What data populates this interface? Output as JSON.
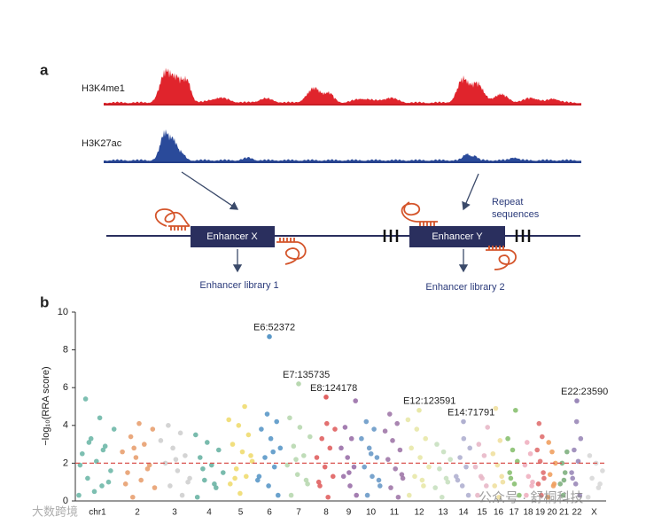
{
  "panel_a": {
    "label": "a",
    "tracks": [
      "H3K4me1",
      "H3K27ac"
    ],
    "enhancers": [
      "Enhancer X",
      "Enhancer Y"
    ],
    "libraries": [
      "Enhancer library 1",
      "Enhancer library 2"
    ],
    "repeat_label": [
      "Repeat",
      "sequences"
    ]
  },
  "chart_data": {
    "type": "scatter",
    "panel_label": "b",
    "ylabel": "−log₁₀(RRA score)",
    "ylim": [
      0,
      10
    ],
    "yticks": [
      0,
      2,
      4,
      6,
      8,
      10
    ],
    "threshold": 2,
    "threshold_color": "#d9534f",
    "categories": [
      "chr1",
      "2",
      "3",
      "4",
      "5",
      "6",
      "7",
      "8",
      "9",
      "10",
      "11",
      "12",
      "13",
      "14",
      "15",
      "16",
      "17",
      "18",
      "19",
      "20",
      "21",
      "22",
      "X"
    ],
    "series": [
      {
        "name": "chr1",
        "color": "#6fb8a8",
        "values": [
          0.3,
          0.8,
          1.2,
          1.6,
          2.1,
          2.5,
          2.9,
          3.3,
          3.8,
          4.4,
          5.4,
          1.0,
          0.5,
          1.9,
          2.7,
          3.1
        ]
      },
      {
        "name": "2",
        "color": "#e8a070",
        "values": [
          0.2,
          0.7,
          1.1,
          1.5,
          1.9,
          2.3,
          2.6,
          3.0,
          3.4,
          3.8,
          4.1,
          0.9,
          1.7,
          2.8
        ]
      },
      {
        "name": "3",
        "color": "#cfcfcf",
        "values": [
          0.3,
          0.8,
          1.2,
          1.6,
          2.0,
          2.4,
          2.8,
          3.2,
          3.6,
          4.0,
          1.0,
          2.2
        ]
      },
      {
        "name": "4",
        "color": "#6ab4a4",
        "values": [
          0.2,
          0.7,
          1.1,
          1.5,
          1.9,
          2.3,
          2.7,
          3.1,
          3.5,
          0.9,
          1.7
        ]
      },
      {
        "name": "5",
        "color": "#f0dc70",
        "values": [
          0.4,
          0.9,
          1.3,
          1.7,
          2.1,
          2.6,
          3.0,
          3.5,
          4.0,
          4.3,
          5.0,
          1.2,
          2.4
        ]
      },
      {
        "name": "6",
        "color": "#5a98c8",
        "values": [
          0.3,
          0.8,
          1.3,
          1.8,
          2.3,
          2.8,
          3.3,
          3.8,
          4.2,
          4.6,
          1.1,
          2.6
        ]
      },
      {
        "name": "7",
        "color": "#b8d8b0",
        "values": [
          0.3,
          0.9,
          1.4,
          1.9,
          2.4,
          2.9,
          3.4,
          3.9,
          4.4,
          1.1,
          2.2
        ]
      },
      {
        "name": "8",
        "color": "#e06060",
        "values": [
          0.2,
          0.8,
          1.3,
          1.8,
          2.3,
          2.8,
          3.3,
          3.8,
          4.1,
          1.0
        ]
      },
      {
        "name": "9",
        "color": "#9a70a8",
        "values": [
          0.3,
          0.8,
          1.3,
          1.8,
          2.3,
          2.8,
          3.3,
          3.9,
          5.3,
          1.5
        ]
      },
      {
        "name": "10",
        "color": "#6a9ac8",
        "values": [
          0.3,
          0.8,
          1.3,
          1.8,
          2.3,
          2.8,
          3.3,
          3.8,
          4.2,
          1.1,
          2.5
        ]
      },
      {
        "name": "11",
        "color": "#a078a8",
        "values": [
          0.2,
          0.7,
          1.2,
          1.7,
          2.2,
          2.7,
          3.2,
          3.7,
          4.1,
          4.6,
          1.4
        ]
      },
      {
        "name": "12",
        "color": "#e8e8a8",
        "values": [
          0.3,
          0.8,
          1.3,
          1.8,
          2.3,
          2.8,
          3.3,
          3.8,
          4.3,
          1.1
        ]
      },
      {
        "name": "13",
        "color": "#c8e0c0",
        "values": [
          0.2,
          0.7,
          1.2,
          1.7,
          2.2,
          2.6,
          3.0,
          1.0
        ]
      },
      {
        "name": "14",
        "color": "#b0b0d0",
        "values": [
          0.3,
          0.8,
          1.3,
          1.8,
          2.3,
          2.8,
          3.3,
          1.1
        ]
      },
      {
        "name": "15",
        "color": "#e8b8c8",
        "values": [
          0.3,
          0.8,
          1.3,
          1.8,
          2.4,
          3.0,
          3.9,
          1.2
        ]
      },
      {
        "name": "16",
        "color": "#f0e0a0",
        "values": [
          0.2,
          0.8,
          1.3,
          1.9,
          2.5,
          3.2,
          4.9,
          1.0
        ]
      },
      {
        "name": "17",
        "color": "#88c070",
        "values": [
          0.3,
          0.9,
          1.5,
          2.1,
          2.7,
          3.3,
          4.8,
          1.2
        ]
      },
      {
        "name": "18",
        "color": "#f0b0c0",
        "values": [
          0.3,
          0.8,
          1.3,
          1.9,
          2.5,
          3.1,
          1.0
        ]
      },
      {
        "name": "19",
        "color": "#e07070",
        "values": [
          0.3,
          0.9,
          1.5,
          2.1,
          2.7,
          3.4,
          4.1,
          1.2
        ]
      },
      {
        "name": "20",
        "color": "#f0a060",
        "values": [
          0.2,
          0.8,
          1.4,
          2.0,
          2.6,
          3.1,
          0.9
        ]
      },
      {
        "name": "21",
        "color": "#80b080",
        "values": [
          0.3,
          0.9,
          1.5,
          2.0,
          2.6,
          1.1
        ]
      },
      {
        "name": "22",
        "color": "#9a88b8",
        "values": [
          0.3,
          0.9,
          1.5,
          2.1,
          2.7,
          3.3,
          4.2,
          1.2
        ]
      },
      {
        "name": "X",
        "color": "#d8d8d8",
        "values": [
          0.2,
          0.7,
          1.2,
          1.6,
          2.0,
          2.4,
          0.9
        ]
      }
    ],
    "annotations": [
      {
        "label": "E6:52372",
        "category": "6",
        "value": 8.7
      },
      {
        "label": "E7:135735",
        "category": "7",
        "value": 6.2
      },
      {
        "label": "E8:124178",
        "category": "8",
        "value": 5.5
      },
      {
        "label": "E12:123591",
        "category": "12",
        "value": 4.8
      },
      {
        "label": "E14:71791",
        "category": "14",
        "value": 4.2
      },
      {
        "label": "E22:23590",
        "category": "22",
        "value": 5.3
      }
    ]
  },
  "watermarks": [
    "公众号 · 舒桐科技",
    "大数跨境"
  ]
}
